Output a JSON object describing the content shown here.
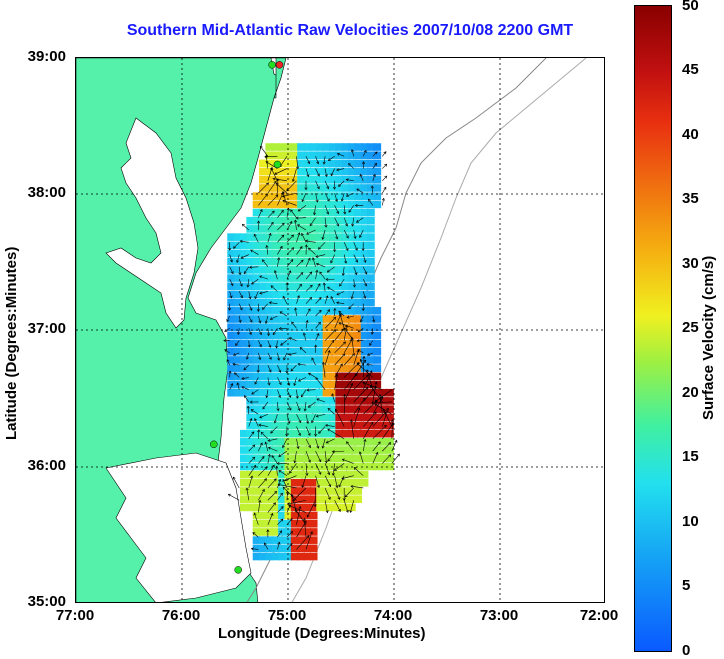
{
  "title": "Southern Mid-Atlantic Raw Velocities 2007/10/08 2200 GMT",
  "x_axis": {
    "label": "Longitude (Degrees:Minutes)",
    "ticks": [
      "77:00",
      "76:00",
      "75:00",
      "74:00",
      "73:00",
      "72:00"
    ]
  },
  "y_axis": {
    "label": "Latitude (Degrees:Minutes)",
    "ticks": [
      "39:00",
      "38:00",
      "37:00",
      "36:00",
      "35:00"
    ]
  },
  "colorbar": {
    "label": "Surface Velocity (cm/s)",
    "ticks": [
      "50",
      "45",
      "40",
      "35",
      "30",
      "25",
      "20",
      "15",
      "10",
      "5",
      "0"
    ],
    "range": [
      0,
      50
    ]
  },
  "colors": {
    "land": "#55f0aa",
    "water": "#ffffff",
    "title": "#1a1aff",
    "station_green": "#22dd22",
    "station_red": "#ee2222"
  },
  "map": {
    "lon_range": [
      -77.0,
      -72.0
    ],
    "lat_range": [
      35.0,
      39.0
    ],
    "grid": "dotted",
    "stations": [
      {
        "lon": -75.08,
        "lat": 38.95,
        "color": "red"
      },
      {
        "lon": -75.15,
        "lat": 38.95,
        "color": "green"
      },
      {
        "lon": -75.1,
        "lat": 38.22,
        "color": "green"
      },
      {
        "lon": -75.7,
        "lat": 36.17,
        "color": "green"
      },
      {
        "lon": -75.47,
        "lat": 35.25,
        "color": "green"
      }
    ]
  }
}
